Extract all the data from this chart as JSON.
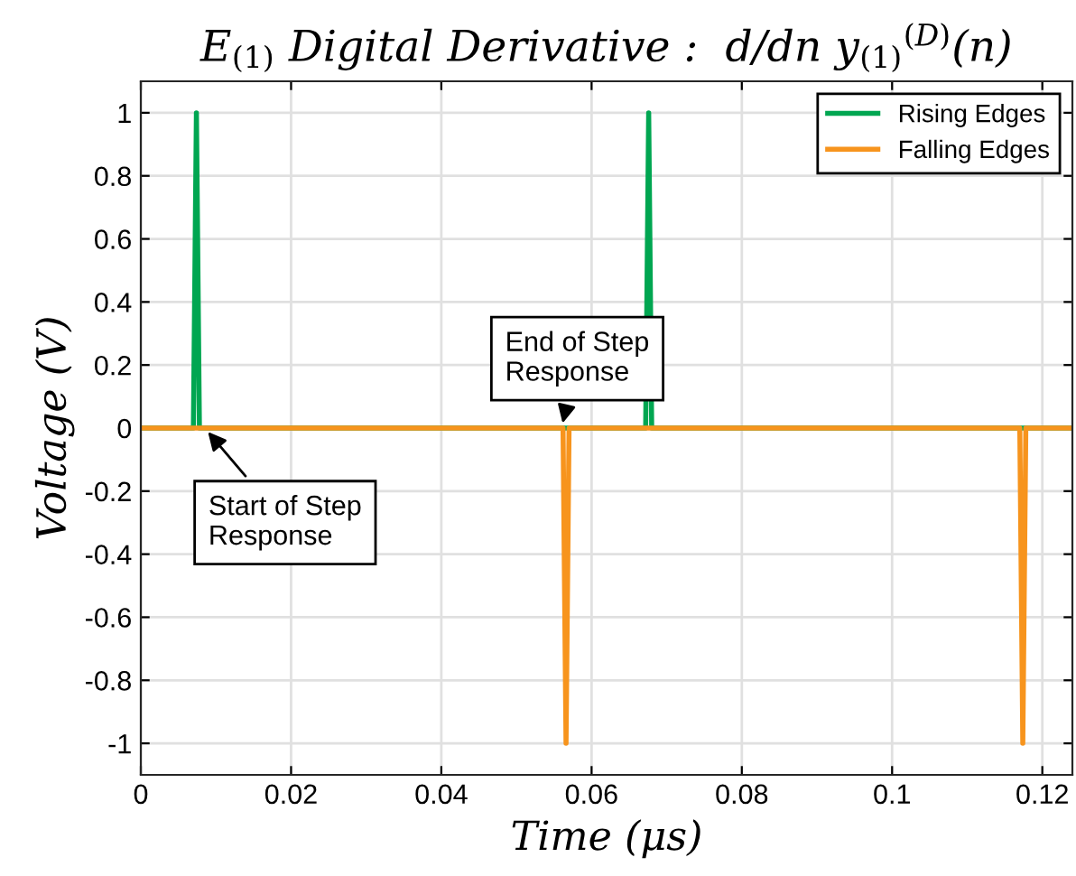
{
  "chart_data": {
    "type": "line",
    "title": "E$_{(1)}$ Digital Derivative :  d/dn y$_{(1)}$$^{(D)}$(n)",
    "xlabel": "Time (μs)",
    "ylabel": "Voltage (V)",
    "series": [
      {
        "name": "Rising Edges",
        "color": "#00a651",
        "x": [
          0,
          0.007,
          0.0074,
          0.0078,
          0.0672,
          0.0676,
          0.068,
          0.124
        ],
        "values": [
          0,
          0,
          1,
          0,
          0,
          1,
          0,
          0
        ]
      },
      {
        "name": "Falling Edges",
        "color": "#f7941d",
        "x": [
          0,
          0.0562,
          0.0566,
          0.057,
          0.117,
          0.1174,
          0.1178,
          0.124
        ],
        "values": [
          0,
          0,
          -1,
          0,
          0,
          -1,
          0,
          0
        ]
      }
    ],
    "xlim": [
      0,
      0.124
    ],
    "xticks": [
      0,
      0.02,
      0.04,
      0.06,
      0.08,
      0.1,
      0.12
    ],
    "ylim": [
      -1.1,
      1.1
    ],
    "yticks": [
      -1,
      -0.8,
      -0.6,
      -0.4,
      -0.2,
      0,
      0.2,
      0.4,
      0.6,
      0.8,
      1
    ],
    "annotations": [
      {
        "text": "Start of Step\nResponse",
        "x": 0.0085,
        "y": 0
      },
      {
        "text": "End of Step\nResponse",
        "x": 0.056,
        "y": 0
      }
    ],
    "grid": true,
    "legend": "top right",
    "marker": "none",
    "line_style": "solid"
  }
}
